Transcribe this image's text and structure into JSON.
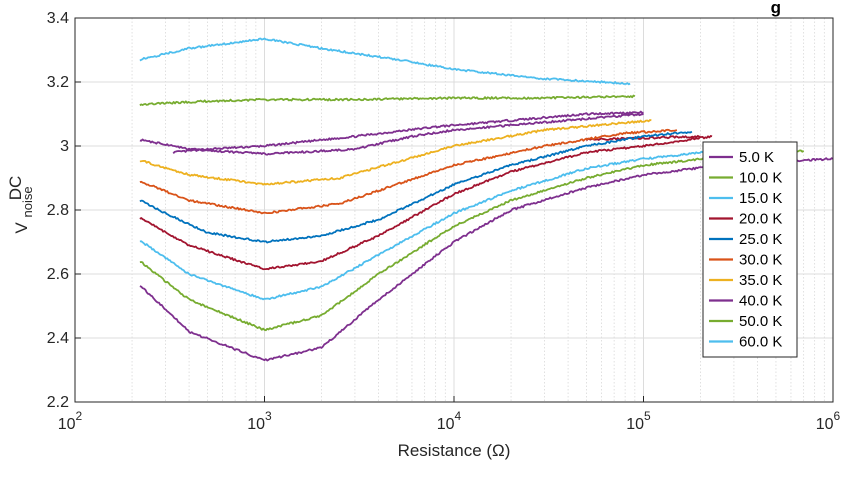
{
  "chart_data": {
    "type": "line",
    "title_fragment": "g",
    "xlabel": "Resistance (Ω)",
    "ylabel_main": "V",
    "ylabel_sup": "DC",
    "ylabel_sub": "noise",
    "xscale": "log",
    "xlim": [
      100,
      1000000
    ],
    "ylim": [
      2.2,
      3.4
    ],
    "grid": true,
    "legend_position": "right",
    "x_ticks": [
      {
        "base": "10",
        "exp": "2"
      },
      {
        "base": "10",
        "exp": "3"
      },
      {
        "base": "10",
        "exp": "4"
      },
      {
        "base": "10",
        "exp": "5"
      },
      {
        "base": "10",
        "exp": "6"
      }
    ],
    "y_ticks": [
      "2.2",
      "2.4",
      "2.6",
      "2.8",
      "3",
      "3.2",
      "3.4"
    ],
    "series": [
      {
        "name": "5.0 K",
        "color": "#7E2F8E",
        "points": [
          [
            330,
            2.98
          ],
          [
            500,
            2.99
          ],
          [
            1000,
            3.0
          ],
          [
            3000,
            3.03
          ],
          [
            8000,
            3.06
          ],
          [
            20000,
            3.08
          ],
          [
            50000,
            3.1
          ],
          [
            100000,
            3.105
          ]
        ]
      },
      {
        "name": "10.0 K",
        "color": "#77AC30",
        "points": [
          [
            220,
            3.13
          ],
          [
            500,
            3.14
          ],
          [
            1000,
            3.145
          ],
          [
            3000,
            3.145
          ],
          [
            10000,
            3.15
          ],
          [
            30000,
            3.15
          ],
          [
            90000,
            3.155
          ]
        ]
      },
      {
        "name": "15.0 K",
        "color": "#4DBEEE",
        "points": [
          [
            220,
            3.27
          ],
          [
            400,
            3.305
          ],
          [
            1000,
            3.335
          ],
          [
            2000,
            3.305
          ],
          [
            5000,
            3.27
          ],
          [
            10000,
            3.24
          ],
          [
            30000,
            3.21
          ],
          [
            85000,
            3.195
          ]
        ]
      },
      {
        "name": "20.0 K",
        "color": "#A2142F",
        "points": [
          [
            50000,
            3.02
          ],
          [
            100000,
            3.025
          ],
          [
            200000,
            3.03
          ]
        ]
      },
      {
        "name": "25.0 K",
        "color": "#0072BD",
        "points": [
          [
            220,
            2.83
          ],
          [
            300,
            2.79
          ],
          [
            500,
            2.73
          ],
          [
            1000,
            2.7
          ],
          [
            2000,
            2.72
          ],
          [
            4000,
            2.77
          ],
          [
            10000,
            2.88
          ],
          [
            20000,
            2.94
          ],
          [
            50000,
            3.0
          ],
          [
            100000,
            3.03
          ],
          [
            180000,
            3.045
          ]
        ]
      },
      {
        "name": "30.0 K",
        "color": "#D95319",
        "points": [
          [
            220,
            2.89
          ],
          [
            400,
            2.83
          ],
          [
            1000,
            2.79
          ],
          [
            2500,
            2.82
          ],
          [
            5000,
            2.88
          ],
          [
            10000,
            2.94
          ],
          [
            30000,
            3.0
          ],
          [
            80000,
            3.04
          ],
          [
            150000,
            3.05
          ]
        ]
      },
      {
        "name": "35.0 K",
        "color": "#EDB120",
        "points": [
          [
            220,
            2.955
          ],
          [
            400,
            2.91
          ],
          [
            1000,
            2.88
          ],
          [
            2500,
            2.9
          ],
          [
            5000,
            2.95
          ],
          [
            10000,
            3.0
          ],
          [
            30000,
            3.05
          ],
          [
            110000,
            3.08
          ]
        ]
      },
      {
        "name": "40.0 K",
        "color": "#7E2F8E",
        "points": [
          [
            220,
            3.02
          ],
          [
            400,
            2.99
          ],
          [
            1000,
            2.975
          ],
          [
            3000,
            2.99
          ],
          [
            6000,
            3.03
          ],
          [
            10000,
            3.05
          ],
          [
            25000,
            3.07
          ],
          [
            100000,
            3.1
          ]
        ]
      },
      {
        "name": "50.0 K",
        "color": "#77AC30",
        "points": [
          [
            250000,
            2.97
          ],
          [
            500000,
            2.98
          ],
          [
            700000,
            2.985
          ]
        ]
      },
      {
        "name": "60.0 K",
        "color": "#4DBEEE",
        "points": [
          [
            220,
            2.705
          ],
          [
            400,
            2.6
          ],
          [
            1000,
            2.52
          ],
          [
            2000,
            2.56
          ],
          [
            4000,
            2.66
          ],
          [
            10000,
            2.79
          ],
          [
            20000,
            2.86
          ],
          [
            50000,
            2.93
          ],
          [
            100000,
            2.96
          ],
          [
            300000,
            2.99
          ],
          [
            500000,
            2.995
          ]
        ]
      }
    ],
    "unlabeled_series": [
      {
        "color": "#A2142F",
        "points": [
          [
            220,
            2.775
          ],
          [
            400,
            2.69
          ],
          [
            1000,
            2.615
          ],
          [
            2000,
            2.64
          ],
          [
            4000,
            2.72
          ],
          [
            10000,
            2.85
          ],
          [
            20000,
            2.92
          ],
          [
            50000,
            2.98
          ],
          [
            100000,
            3.0
          ],
          [
            230000,
            3.03
          ]
        ]
      },
      {
        "color": "#77AC30",
        "points": [
          [
            220,
            2.64
          ],
          [
            400,
            2.52
          ],
          [
            1000,
            2.425
          ],
          [
            2000,
            2.47
          ],
          [
            4000,
            2.6
          ],
          [
            10000,
            2.75
          ],
          [
            20000,
            2.83
          ],
          [
            50000,
            2.9
          ],
          [
            100000,
            2.94
          ],
          [
            300000,
            2.97
          ],
          [
            650000,
            2.985
          ]
        ]
      },
      {
        "color": "#7E2F8E",
        "points": [
          [
            220,
            2.565
          ],
          [
            400,
            2.42
          ],
          [
            1000,
            2.33
          ],
          [
            2000,
            2.37
          ],
          [
            4000,
            2.52
          ],
          [
            10000,
            2.7
          ],
          [
            20000,
            2.8
          ],
          [
            50000,
            2.87
          ],
          [
            100000,
            2.91
          ],
          [
            300000,
            2.945
          ],
          [
            1000000,
            2.96
          ]
        ]
      }
    ]
  }
}
